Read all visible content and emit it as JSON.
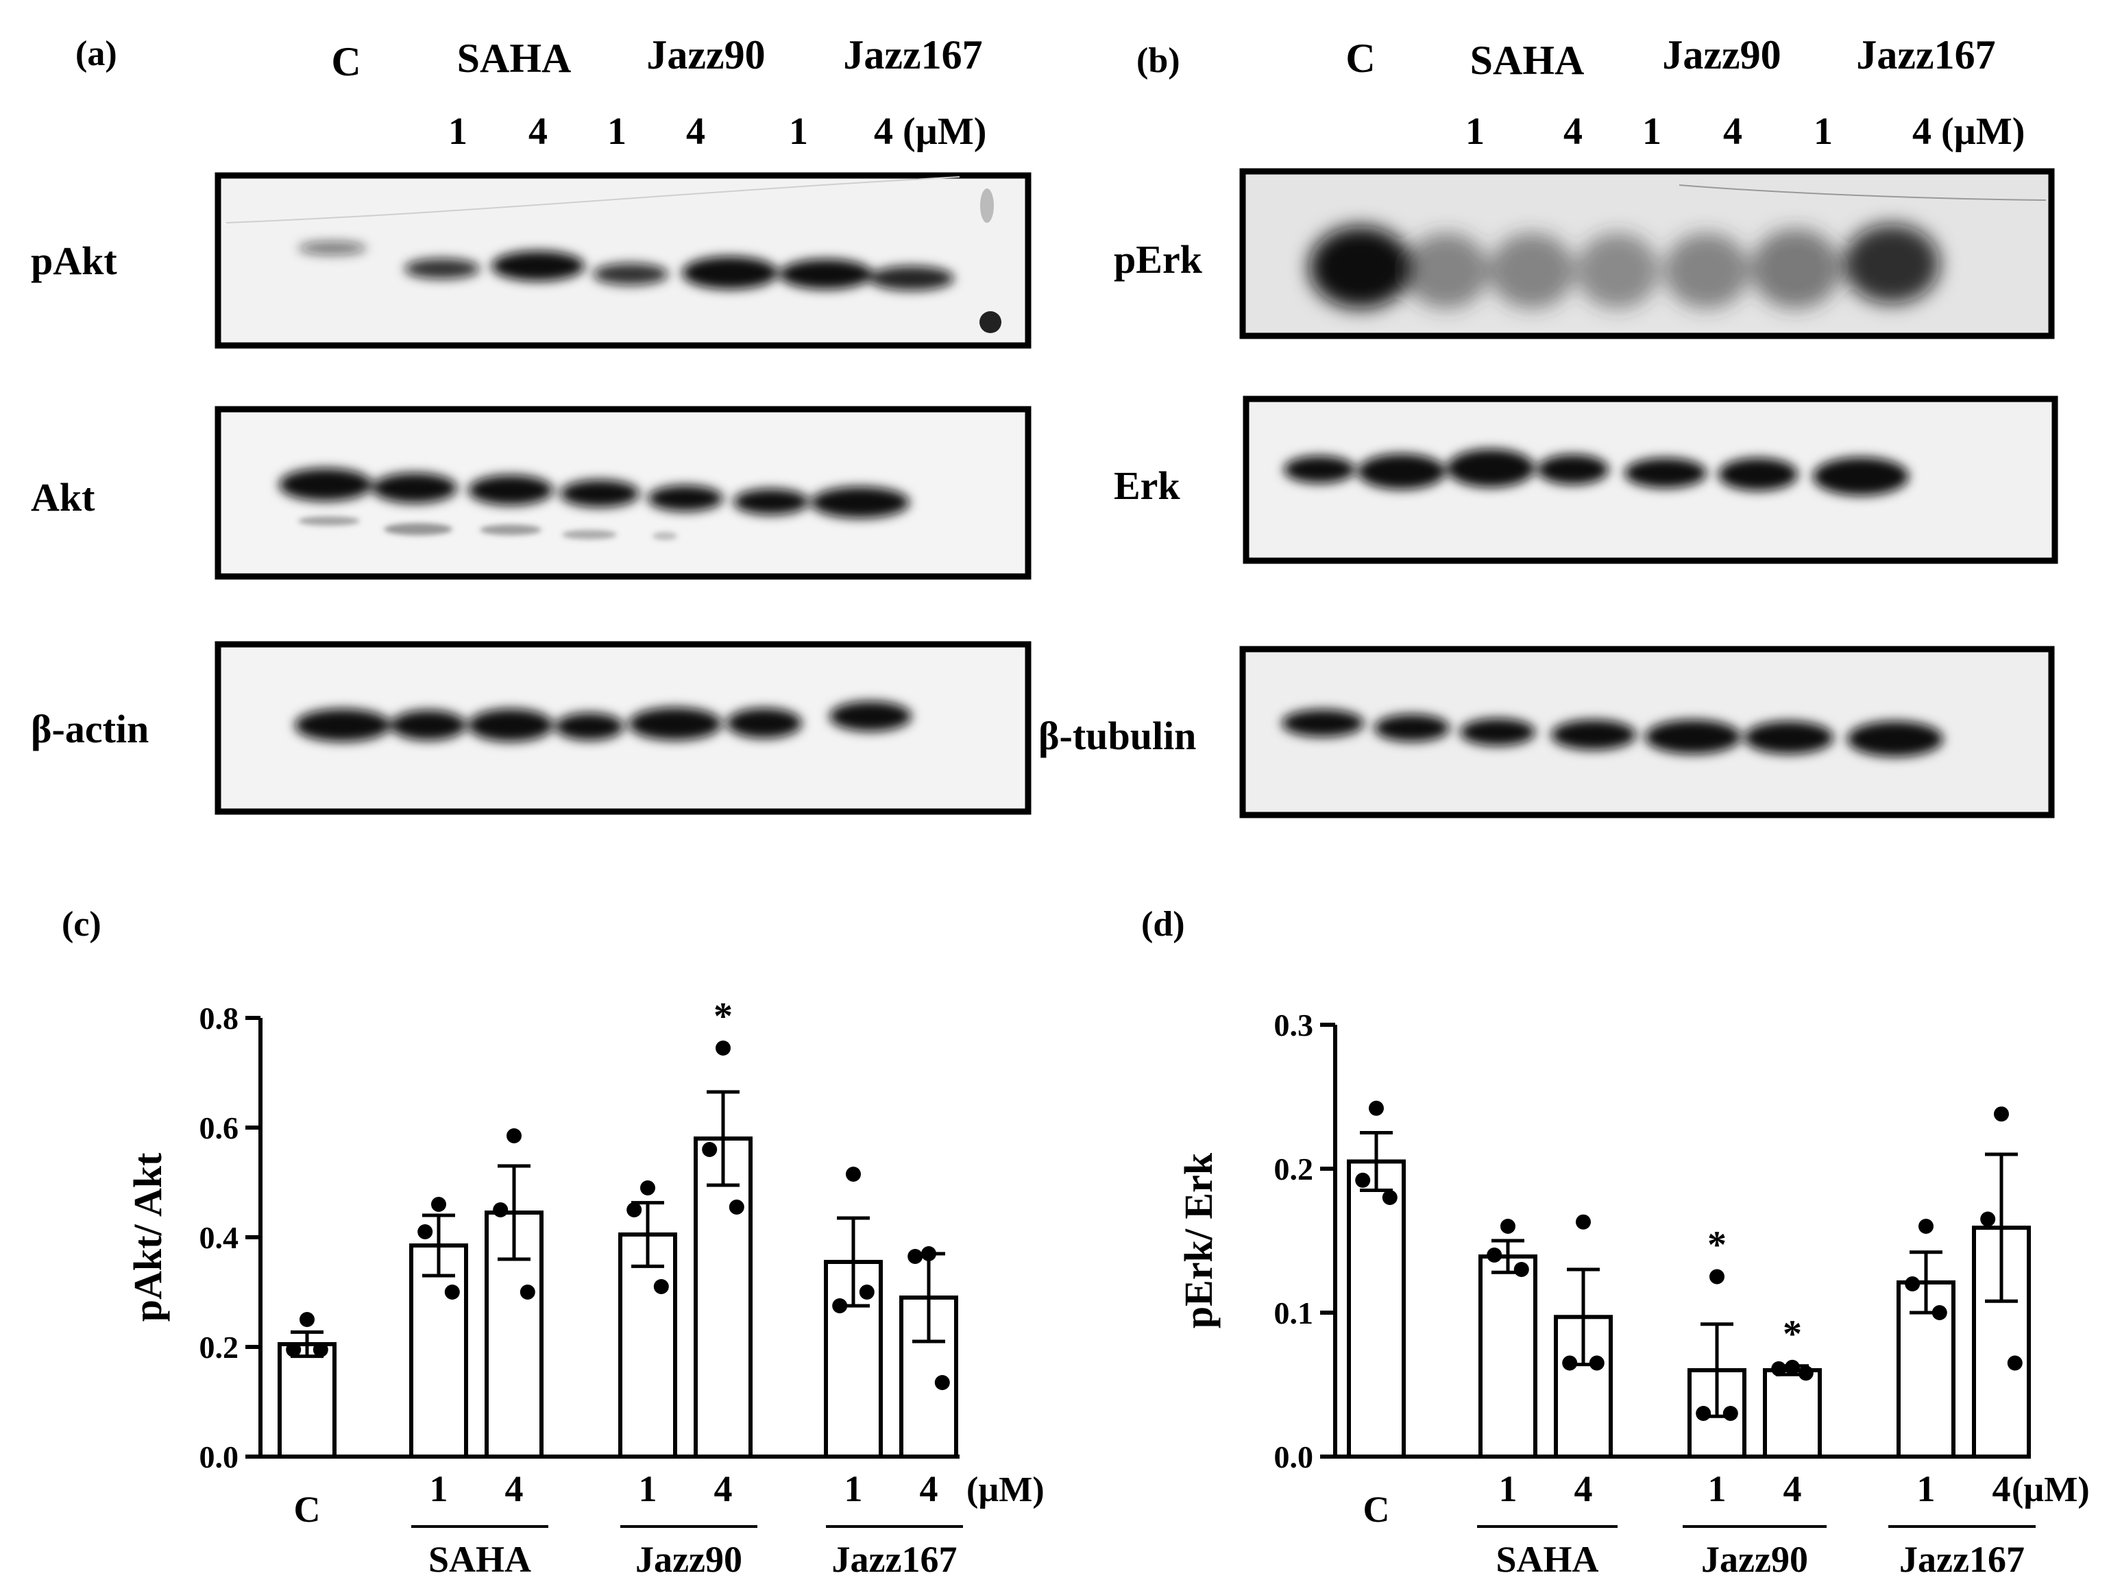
{
  "panels": {
    "a": "(a)",
    "b": "(b)",
    "c": "(c)",
    "d": "(d)"
  },
  "blot_a": {
    "groups": [
      "C",
      "SAHA",
      "Jazz90",
      "Jazz167"
    ],
    "doses": [
      "1",
      "4",
      "1",
      "4",
      "1",
      "4 (µM)"
    ],
    "rows": [
      "pAkt",
      "Akt",
      "β-actin"
    ]
  },
  "blot_b": {
    "groups": [
      "C",
      "SAHA",
      "Jazz90",
      "Jazz167"
    ],
    "doses": [
      "1",
      "4",
      "1",
      "4",
      "1",
      "4 (µM)"
    ],
    "rows": [
      "pErk",
      "Erk",
      "β-tubulin"
    ]
  },
  "chart_data": [
    {
      "type": "bar",
      "panel": "(c)",
      "ylabel": "pAkt/ Akt",
      "ylim": [
        0,
        0.8
      ],
      "yticks": [
        "0.0",
        "0.2",
        "0.4",
        "0.6",
        "0.8"
      ],
      "unit_label": "(µM)",
      "categories": [
        "C",
        "1",
        "4",
        "1",
        "4",
        "1",
        "4"
      ],
      "groups": [
        {
          "label": "C",
          "members": [
            0
          ]
        },
        {
          "label": "SAHA",
          "members": [
            1,
            2
          ]
        },
        {
          "label": "Jazz90",
          "members": [
            3,
            4
          ]
        },
        {
          "label": "Jazz167",
          "members": [
            5,
            6
          ]
        }
      ],
      "values": [
        0.205,
        0.385,
        0.445,
        0.405,
        0.58,
        0.355,
        0.29
      ],
      "errors": [
        0.022,
        0.055,
        0.085,
        0.058,
        0.085,
        0.08,
        0.08
      ],
      "points": [
        [
          0.25,
          0.195,
          0.195
        ],
        [
          0.46,
          0.41,
          0.3
        ],
        [
          0.585,
          0.45,
          0.3
        ],
        [
          0.49,
          0.45,
          0.31
        ],
        [
          0.745,
          0.56,
          0.455
        ],
        [
          0.515,
          0.275,
          0.3
        ],
        [
          0.37,
          0.365,
          0.135
        ]
      ],
      "significance": [
        "",
        "",
        "",
        "",
        "*",
        "",
        ""
      ]
    },
    {
      "type": "bar",
      "panel": "(d)",
      "ylabel": "pErk/ Erk",
      "ylim": [
        0,
        0.3
      ],
      "yticks": [
        "0.0",
        "0.1",
        "0.2",
        "0.3"
      ],
      "unit_label": "(µM)",
      "categories": [
        "C",
        "1",
        "4",
        "1",
        "4",
        "1",
        "4"
      ],
      "groups": [
        {
          "label": "C",
          "members": [
            0
          ]
        },
        {
          "label": "SAHA",
          "members": [
            1,
            2
          ]
        },
        {
          "label": "Jazz90",
          "members": [
            3,
            4
          ]
        },
        {
          "label": "Jazz167",
          "members": [
            5,
            6
          ]
        }
      ],
      "values": [
        0.205,
        0.139,
        0.097,
        0.06,
        0.06,
        0.121,
        0.159
      ],
      "errors": [
        0.02,
        0.011,
        0.033,
        0.032,
        0.003,
        0.021,
        0.051
      ],
      "points": [
        [
          0.242,
          0.192,
          0.18
        ],
        [
          0.16,
          0.14,
          0.13
        ],
        [
          0.163,
          0.065,
          0.065
        ],
        [
          0.125,
          0.03,
          0.03
        ],
        [
          0.062,
          0.061,
          0.058
        ],
        [
          0.16,
          0.12,
          0.1
        ],
        [
          0.238,
          0.165,
          0.065
        ]
      ],
      "significance": [
        "",
        "",
        "",
        "*",
        "*",
        "",
        ""
      ]
    }
  ]
}
